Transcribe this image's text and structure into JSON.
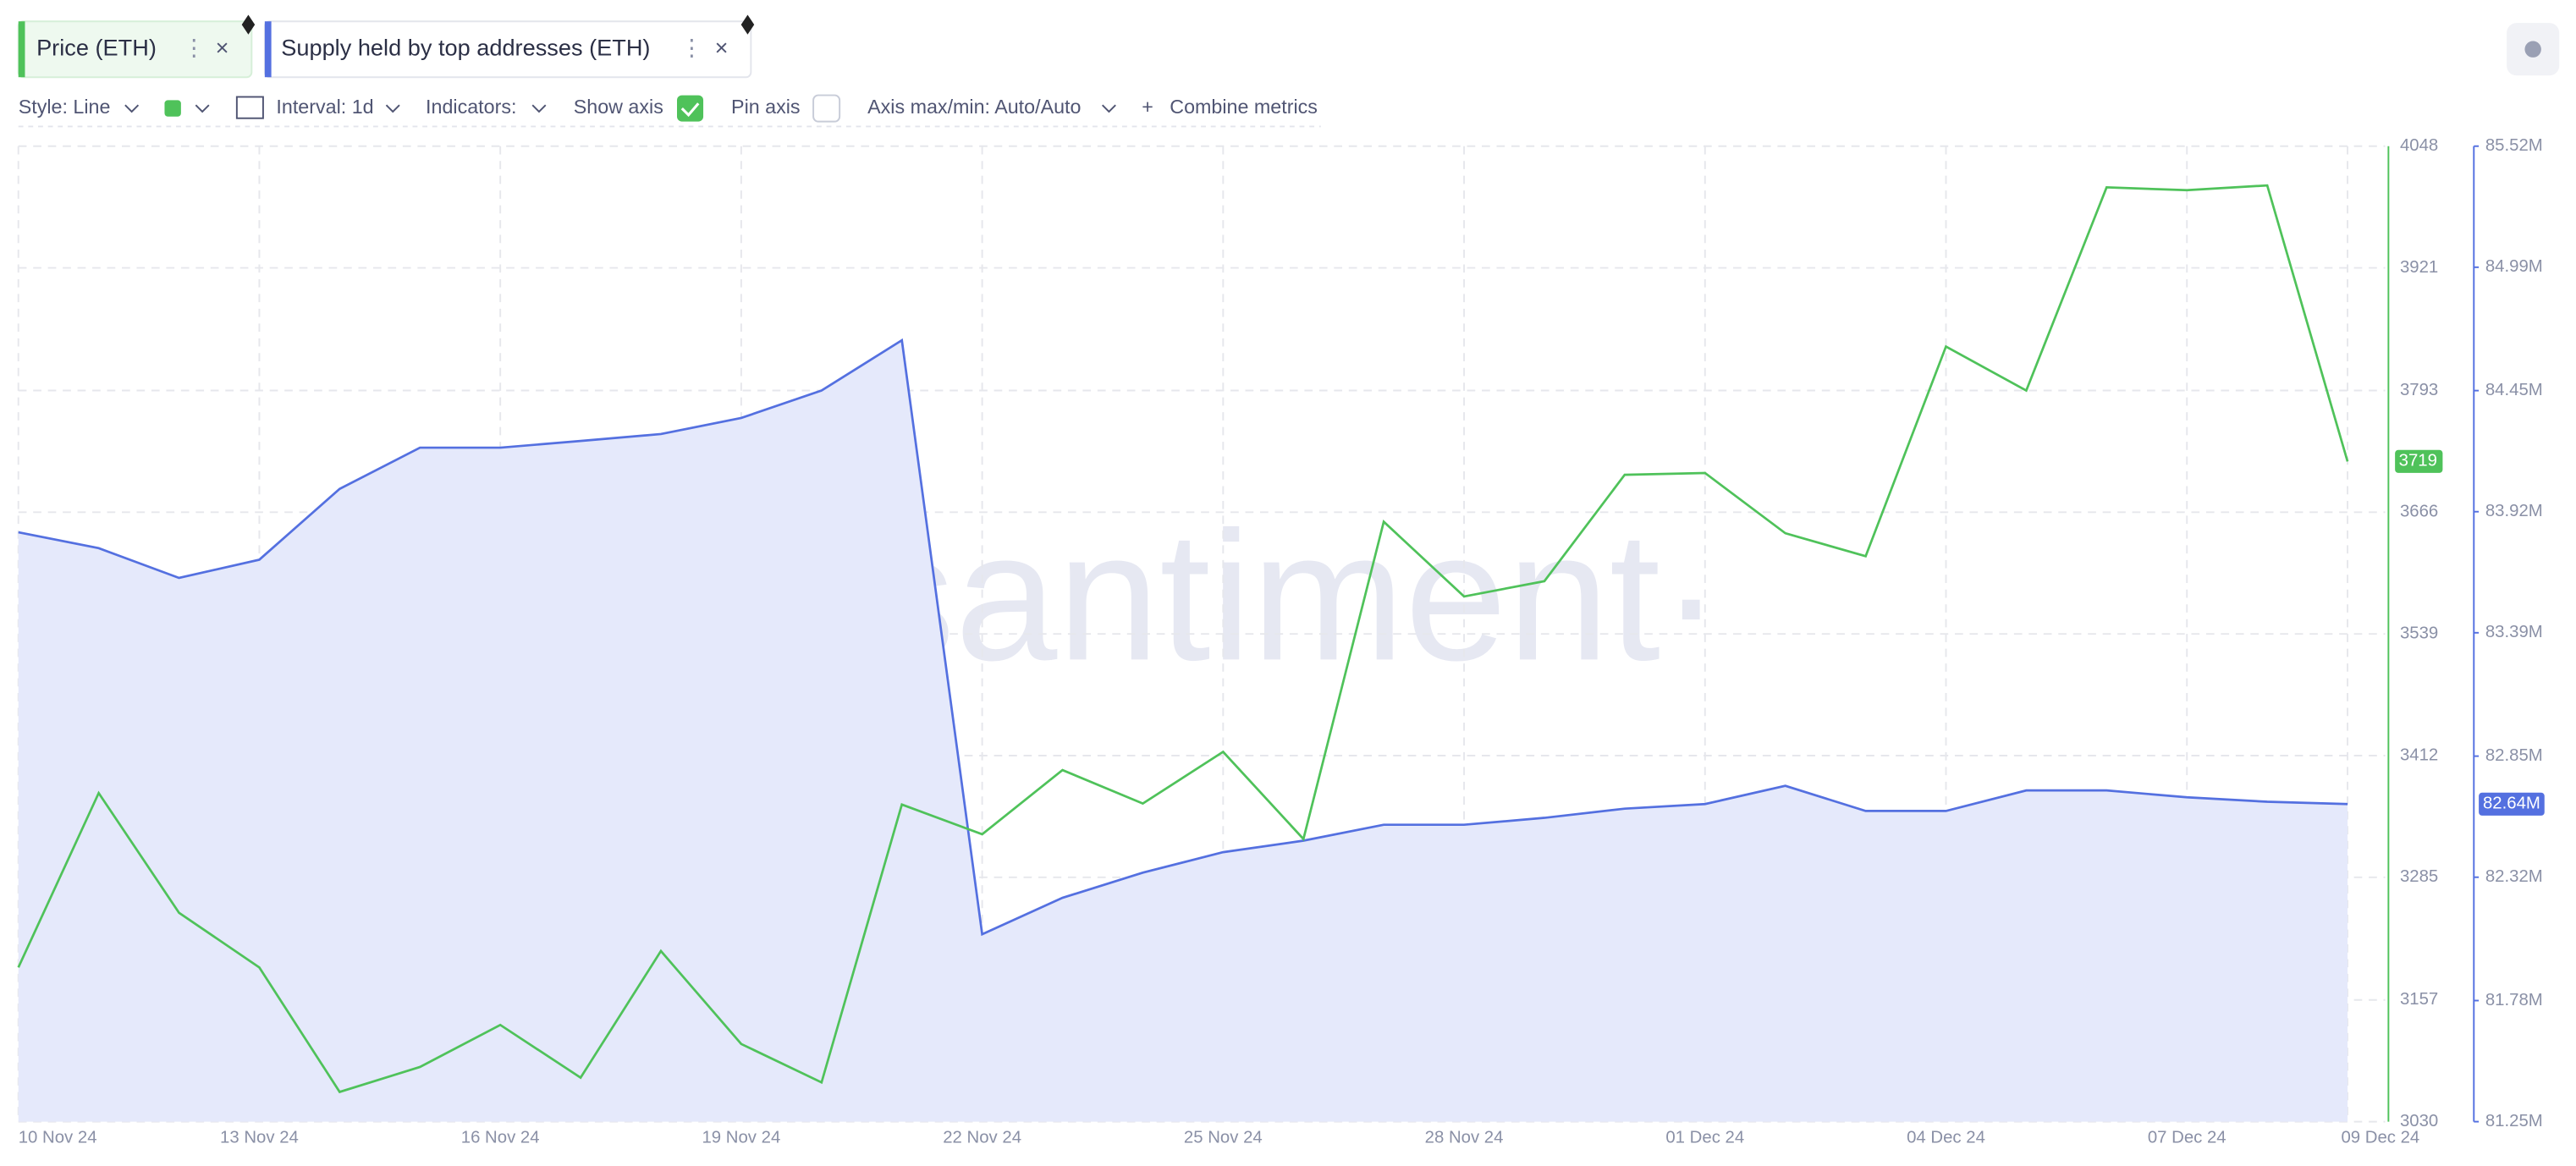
{
  "ui": {
    "tabs": [
      "Price (ETH)",
      "Supply held by top addresses (ETH)"
    ],
    "toolbar": {
      "style": "Style: Line",
      "interval": "Interval: 1d",
      "indicators": "Indicators:",
      "show_axis": "Show axis",
      "pin_axis": "Pin axis",
      "axis_maxmin": "Axis max/min: Auto/Auto",
      "combine": "Combine metrics"
    }
  },
  "chart_data": {
    "type": "line",
    "watermark": "·santiment·",
    "categories": [
      "10 Nov 24",
      null,
      null,
      "13 Nov 24",
      null,
      null,
      "16 Nov 24",
      null,
      null,
      "19 Nov 24",
      null,
      null,
      "22 Nov 24",
      null,
      null,
      "25 Nov 24",
      null,
      null,
      "28 Nov 24",
      null,
      null,
      "01 Dec 24",
      null,
      null,
      "04 Dec 24",
      null,
      null,
      "07 Dec 24",
      null,
      "09 Dec 24"
    ],
    "grid": true,
    "series": [
      {
        "name": "Price (ETH)",
        "color": "#4fc25a",
        "axis": "y",
        "values": [
          3191,
          3373,
          3248,
          3191,
          3061,
          3087,
          3131,
          3076,
          3208,
          3111,
          3071,
          3361,
          3330,
          3397,
          3362,
          3416,
          3325,
          3656,
          3578,
          3594,
          3705,
          3707,
          3644,
          3620,
          3839,
          3793,
          4005,
          4002,
          4007,
          3719
        ]
      },
      {
        "name": "Supply held by top addresses (ETH)",
        "color": "#5470e0",
        "axis": "y2",
        "area": true,
        "values": [
          83830000,
          83760000,
          83630000,
          83710000,
          84020000,
          84200000,
          84200000,
          84230000,
          84260000,
          84330000,
          84450000,
          84670000,
          82070000,
          82230000,
          82340000,
          82430000,
          82480000,
          82550000,
          82550000,
          82580000,
          82620000,
          82640000,
          82720000,
          82610000,
          82610000,
          82700000,
          82700000,
          82670000,
          82650000,
          82640000
        ],
        "last_label": "82.64M"
      }
    ],
    "ylim": [
      3030,
      4048
    ],
    "yticks": [
      3030,
      3157,
      3285,
      3412,
      3539,
      3666,
      3793,
      3921,
      4048
    ],
    "y2lim": [
      81250000,
      85520000
    ],
    "y2ticks": [
      {
        "value": 81250000,
        "label": "81.25M"
      },
      {
        "value": 81780000,
        "label": "81.78M"
      },
      {
        "value": 82320000,
        "label": "82.32M"
      },
      {
        "value": 82850000,
        "label": "82.85M"
      },
      {
        "value": 83390000,
        "label": "83.39M"
      },
      {
        "value": 83920000,
        "label": "83.92M"
      },
      {
        "value": 84450000,
        "label": "84.45M"
      },
      {
        "value": 84990000,
        "label": "84.99M"
      },
      {
        "value": 85520000,
        "label": "85.52M"
      }
    ]
  }
}
